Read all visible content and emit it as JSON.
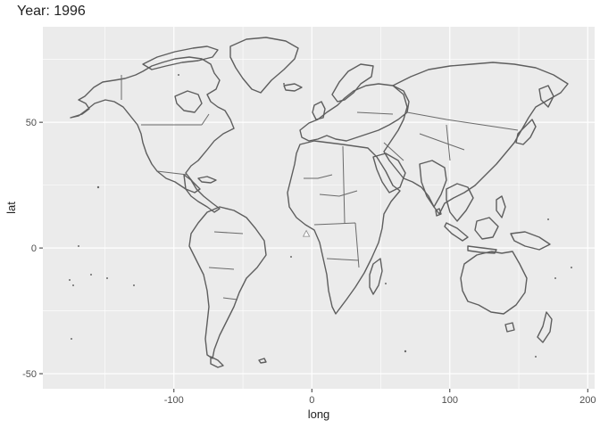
{
  "plot": {
    "title": "Year: 1996",
    "xlabel": "long",
    "ylabel": "lat",
    "xlim": [
      -195,
      205
    ],
    "ylim": [
      -56,
      88
    ],
    "x_ticks": [
      -100,
      0,
      100,
      200
    ],
    "y_ticks": [
      -50,
      0,
      50
    ],
    "x_tick_labels": [
      "-100",
      "0",
      "100",
      "200"
    ],
    "y_tick_labels": [
      "-50",
      "0",
      "50"
    ],
    "panel_color": "#ebebeb",
    "grid_major_color": "#ffffff",
    "outline_color": "#5e5e5e",
    "grid": true
  },
  "marker": {
    "long": -4,
    "lat": 5.5,
    "symbol": "triangle-up",
    "color": "#ffffff"
  }
}
